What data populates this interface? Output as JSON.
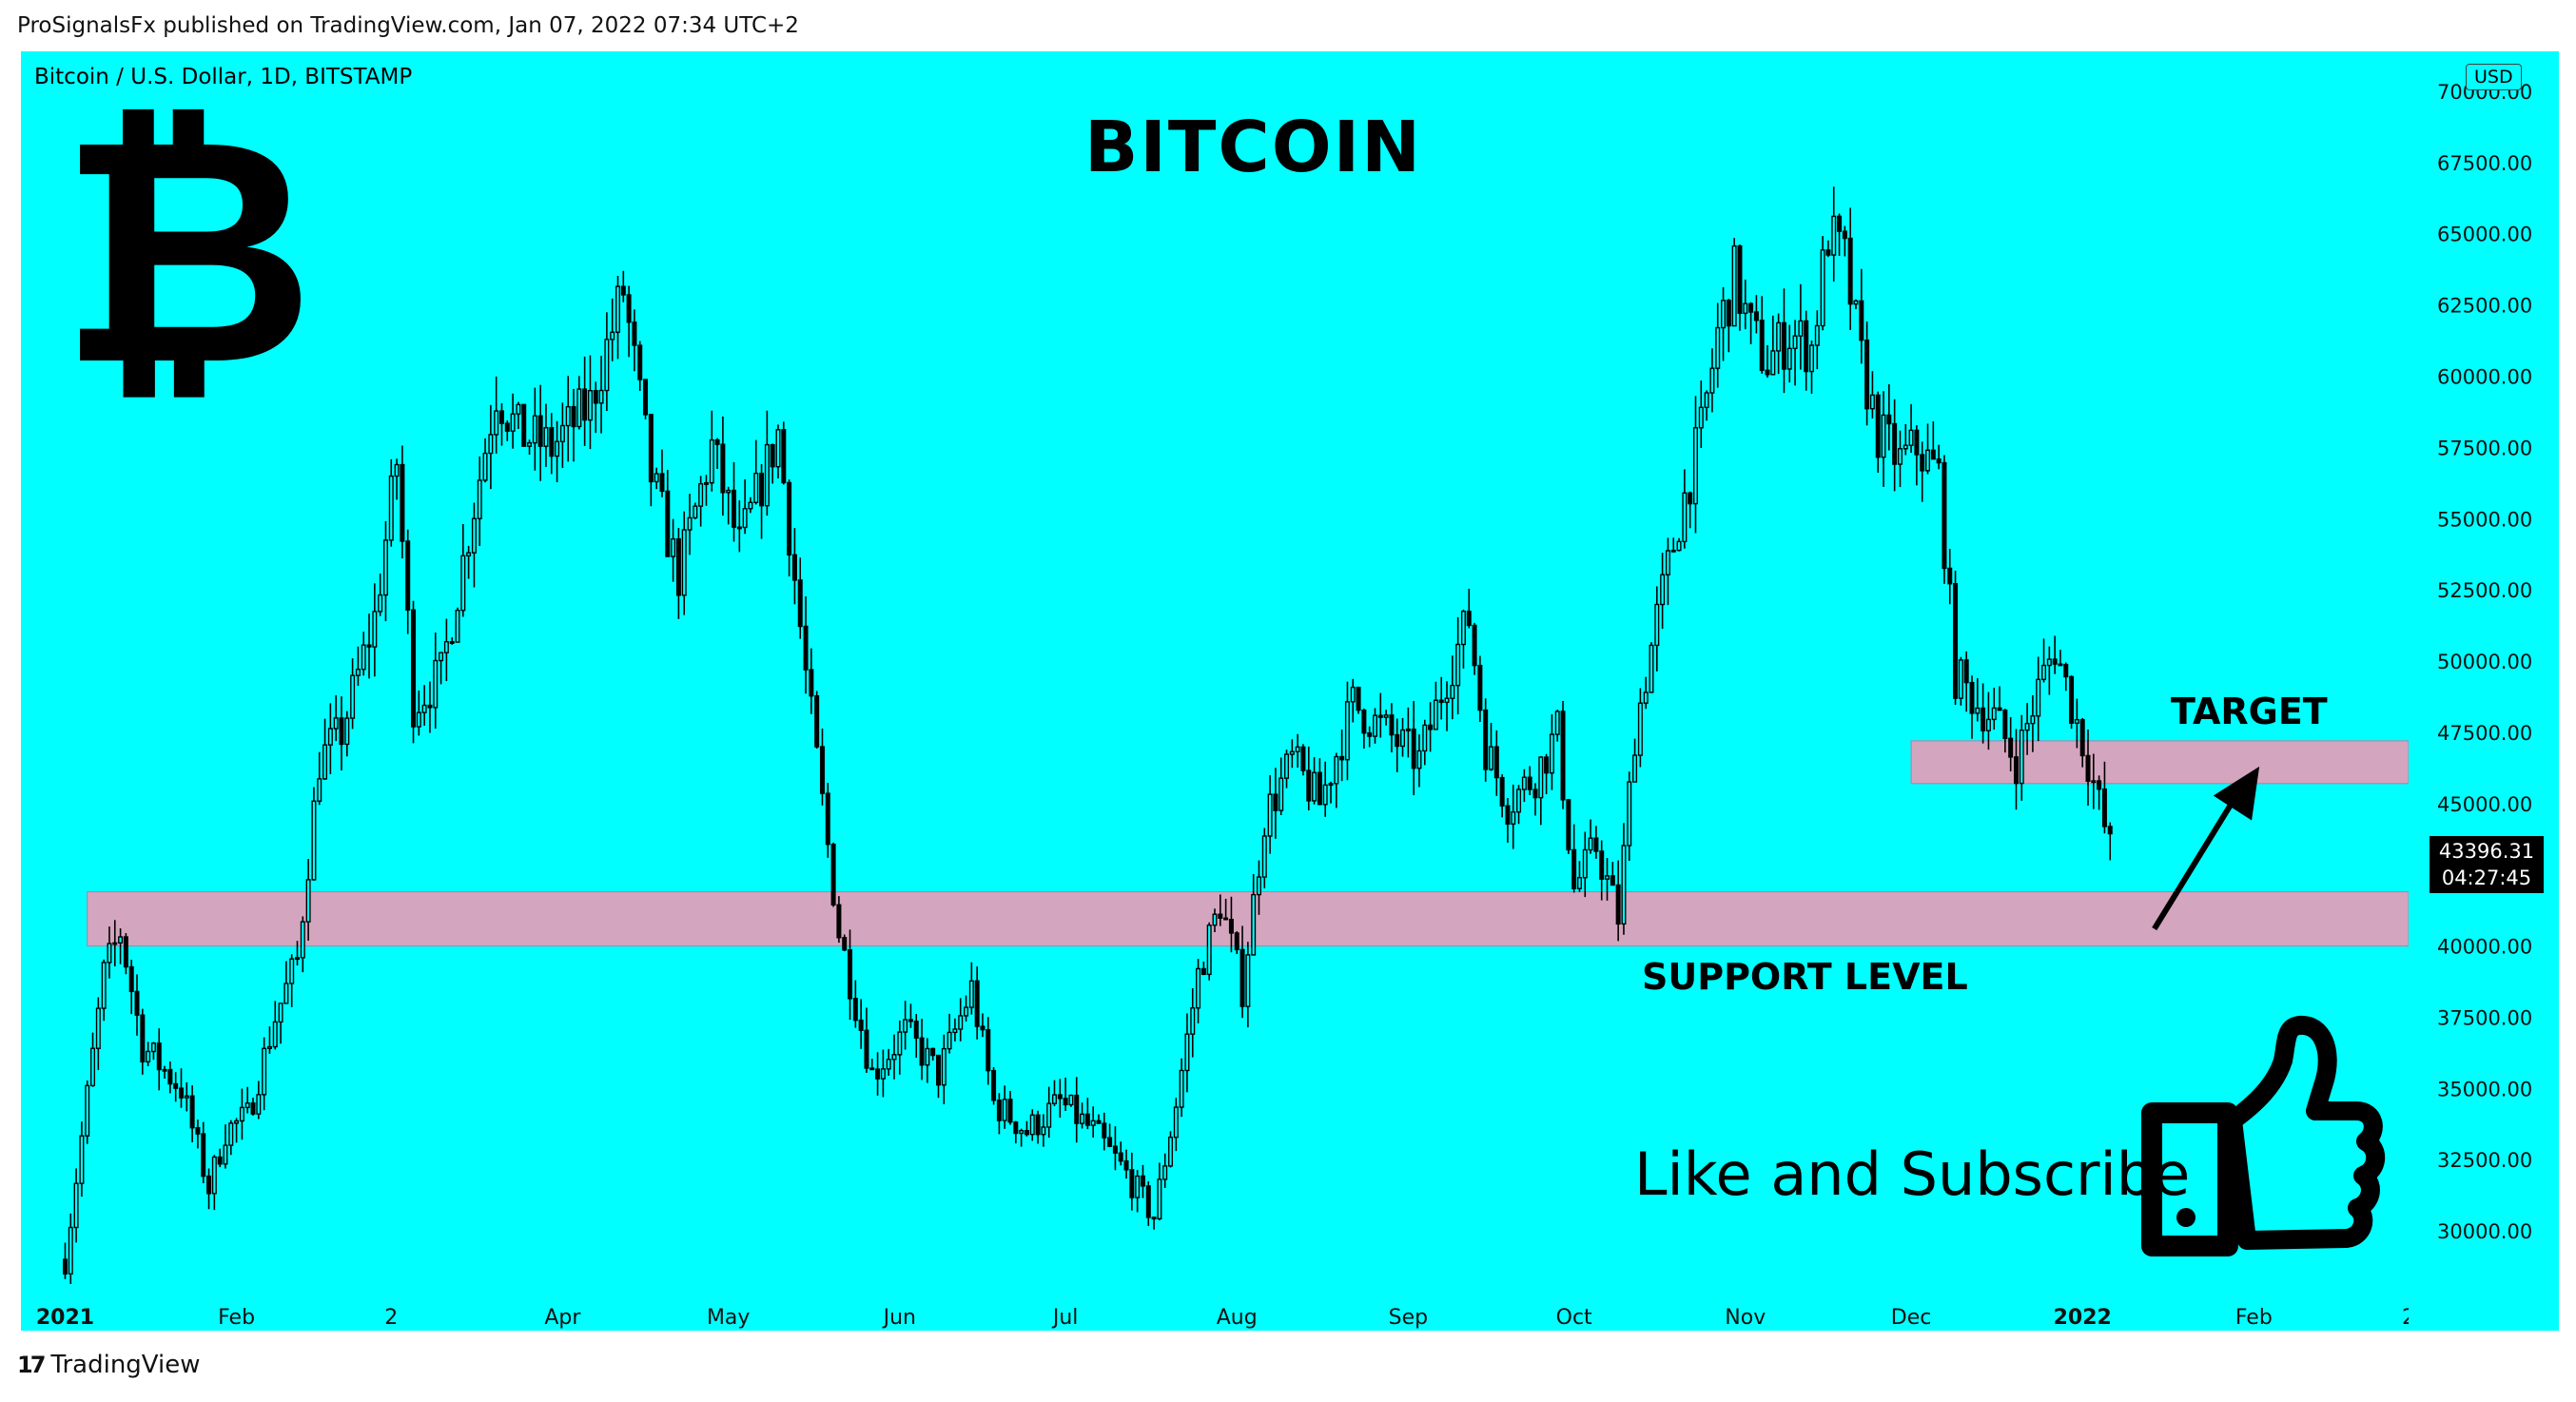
{
  "header": {
    "attribution": "ProSignalsFx published on TradingView.com, Jan 07, 2022 07:34 UTC+2"
  },
  "symbol_line": "Bitcoin / U.S. Dollar, 1D, BITSTAMP",
  "currency_button": "USD",
  "last_price": "43396.31",
  "countdown": "04:27:45",
  "annotations": {
    "logo_symbol": "₿",
    "title": "BITCOIN",
    "target_label": "TARGET",
    "support_label": "SUPPORT LEVEL",
    "like_text": "Like and Subscribe"
  },
  "footer": {
    "brand": "TradingView",
    "brand_mark": "17"
  },
  "colors": {
    "background": "#00ffff",
    "zone": "#d4a5be",
    "candles": "#000000"
  },
  "chart_data": {
    "type": "candlestick",
    "title": "Bitcoin / U.S. Dollar, 1D, BITSTAMP",
    "y_ticks": [
      30000,
      32500,
      35000,
      37500,
      40000,
      42500,
      45000,
      47500,
      50000,
      52500,
      55000,
      57500,
      60000,
      62500,
      65000,
      67500,
      70000
    ],
    "y_tick_labels": [
      "30000.00",
      "32500.00",
      "35000.00",
      "37500.00",
      "40000.00",
      "42500.00",
      "45000.00",
      "47500.00",
      "50000.00",
      "52500.00",
      "55000.00",
      "57500.00",
      "60000.00",
      "62500.00",
      "65000.00",
      "67500.00",
      "70000.00"
    ],
    "ylim": [
      27500,
      71400
    ],
    "x_ticks": [
      "2021",
      "Feb",
      "2",
      "Apr",
      "May",
      "Jun",
      "Jul",
      "Aug",
      "Sep",
      "Oct",
      "Nov",
      "Dec",
      "2022",
      "Feb",
      "2"
    ],
    "x_tick_days": [
      0,
      31,
      59,
      90,
      120,
      151,
      181,
      212,
      243,
      273,
      304,
      334,
      365,
      396,
      424
    ],
    "x_tick_bold": [
      true,
      false,
      false,
      false,
      false,
      false,
      false,
      false,
      false,
      false,
      false,
      false,
      true,
      false,
      false
    ],
    "xlim": [
      -8,
      424
    ],
    "zones": [
      {
        "label": "SUPPORT LEVEL",
        "day_start": 4,
        "day_end": 424,
        "low": 40000,
        "high": 41900
      },
      {
        "label": "TARGET",
        "day_start": 334,
        "day_end": 424,
        "low": 45700,
        "high": 47200
      }
    ],
    "last_price": 43396.31,
    "arrow": {
      "from_day": 378,
      "from_price": 40600,
      "to_day": 397,
      "to_price": 46300
    },
    "close_series": [
      [
        0,
        29000
      ],
      [
        7,
        39000
      ],
      [
        10,
        40500
      ],
      [
        14,
        36500
      ],
      [
        21,
        35000
      ],
      [
        26,
        31500
      ],
      [
        29,
        33500
      ],
      [
        33,
        34000
      ],
      [
        38,
        37500
      ],
      [
        42,
        39500
      ],
      [
        46,
        46500
      ],
      [
        50,
        47500
      ],
      [
        56,
        51500
      ],
      [
        60,
        57000
      ],
      [
        63,
        48500
      ],
      [
        68,
        49500
      ],
      [
        74,
        55500
      ],
      [
        78,
        59500
      ],
      [
        82,
        58000
      ],
      [
        88,
        57500
      ],
      [
        95,
        59000
      ],
      [
        101,
        63000
      ],
      [
        106,
        56500
      ],
      [
        111,
        53000
      ],
      [
        117,
        57500
      ],
      [
        122,
        54000
      ],
      [
        129,
        58000
      ],
      [
        134,
        49500
      ],
      [
        140,
        40500
      ],
      [
        146,
        35500
      ],
      [
        152,
        37000
      ],
      [
        158,
        35500
      ],
      [
        164,
        38500
      ],
      [
        168,
        34500
      ],
      [
        174,
        33500
      ],
      [
        180,
        34500
      ],
      [
        186,
        33500
      ],
      [
        192,
        32000
      ],
      [
        197,
        30500
      ],
      [
        201,
        34500
      ],
      [
        205,
        39000
      ],
      [
        209,
        41500
      ],
      [
        213,
        38500
      ],
      [
        217,
        44500
      ],
      [
        222,
        46500
      ],
      [
        227,
        45000
      ],
      [
        233,
        48500
      ],
      [
        239,
        47500
      ],
      [
        245,
        46500
      ],
      [
        250,
        49500
      ],
      [
        254,
        51500
      ],
      [
        257,
        47000
      ],
      [
        261,
        45000
      ],
      [
        266,
        46000
      ],
      [
        270,
        47500
      ],
      [
        273,
        42000
      ],
      [
        277,
        43500
      ],
      [
        281,
        41000
      ],
      [
        284,
        47500
      ],
      [
        288,
        51500
      ],
      [
        292,
        55000
      ],
      [
        296,
        58000
      ],
      [
        299,
        61500
      ],
      [
        302,
        63500
      ],
      [
        305,
        61500
      ],
      [
        308,
        60500
      ],
      [
        312,
        61500
      ],
      [
        316,
        61000
      ],
      [
        319,
        65000
      ],
      [
        322,
        64000
      ],
      [
        325,
        60500
      ],
      [
        328,
        58000
      ],
      [
        332,
        57000
      ],
      [
        335,
        57500
      ],
      [
        339,
        56500
      ],
      [
        342,
        49500
      ],
      [
        346,
        48500
      ],
      [
        349,
        48000
      ],
      [
        353,
        46500
      ],
      [
        357,
        49000
      ],
      [
        360,
        50500
      ],
      [
        363,
        48500
      ],
      [
        366,
        46500
      ],
      [
        370,
        43400
      ]
    ]
  }
}
